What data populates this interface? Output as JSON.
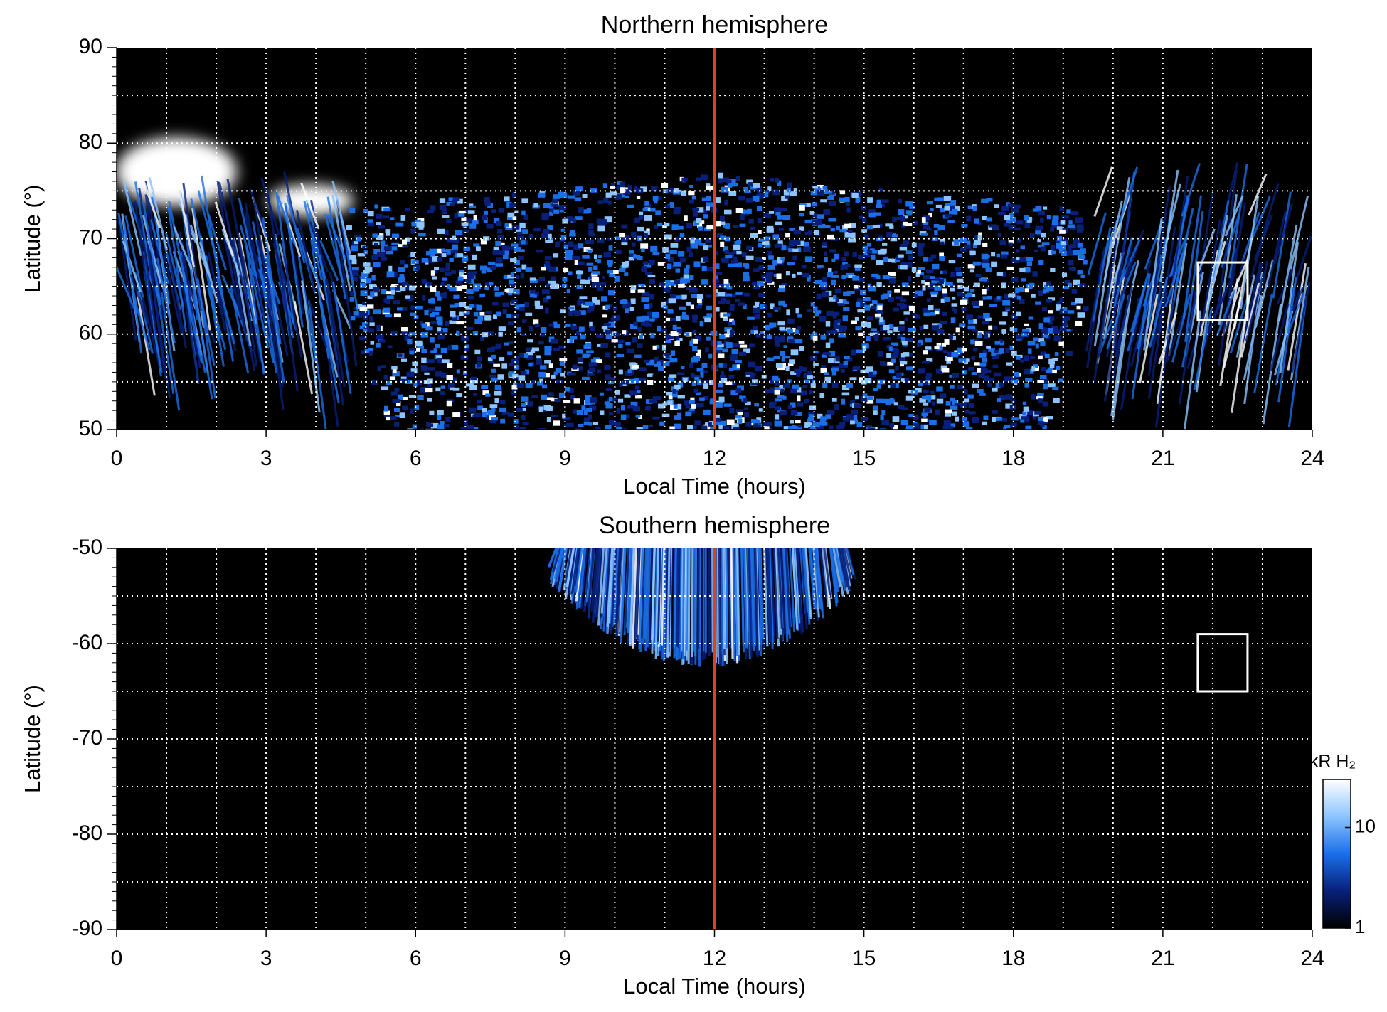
{
  "chart_data": [
    {
      "type": "heatmap",
      "title": "Northern hemisphere",
      "xlabel": "Local Time (hours)",
      "ylabel": "Latitude (°)",
      "xlim": [
        0,
        24
      ],
      "ylim": [
        50,
        90
      ],
      "xticks": [
        0,
        3,
        6,
        9,
        12,
        15,
        18,
        21,
        24
      ],
      "yticks": [
        50,
        60,
        70,
        80,
        90
      ],
      "xgrid": [
        1,
        2,
        3,
        4,
        5,
        6,
        7,
        8,
        9,
        10,
        11,
        13,
        14,
        15,
        16,
        17,
        18,
        19,
        20,
        21,
        22,
        23
      ],
      "ygrid": [
        55,
        60,
        65,
        70,
        75,
        80,
        85
      ],
      "vline": {
        "value": 12,
        "color": "#e0401a"
      },
      "box": {
        "x": [
          21.7,
          22.7
        ],
        "y": [
          61.5,
          67.5
        ],
        "color": "#ffffff"
      },
      "colormap": [
        "#000000",
        "#08207a",
        "#1a6fe8",
        "#8cc4ff",
        "#ffffff"
      ]
    },
    {
      "type": "heatmap",
      "title": "Southern hemisphere",
      "xlabel": "Local Time (hours)",
      "ylabel": "Latitude (°)",
      "xlim": [
        0,
        24
      ],
      "ylim": [
        -90,
        -50
      ],
      "xticks": [
        0,
        3,
        6,
        9,
        12,
        15,
        18,
        21,
        24
      ],
      "yticks": [
        -90,
        -80,
        -70,
        -60,
        -50
      ],
      "xgrid": [
        1,
        2,
        3,
        4,
        5,
        6,
        7,
        8,
        9,
        10,
        11,
        13,
        14,
        15,
        16,
        17,
        18,
        19,
        20,
        21,
        22,
        23
      ],
      "ygrid": [
        -85,
        -80,
        -75,
        -70,
        -65,
        -60,
        -55
      ],
      "vline": {
        "value": 12,
        "color": "#e0401a"
      },
      "box": {
        "x": [
          21.7,
          22.7
        ],
        "y": [
          -65,
          -59
        ],
        "color": "#ffffff"
      },
      "colormap": [
        "#000000",
        "#08207a",
        "#1a6fe8",
        "#8cc4ff",
        "#ffffff"
      ],
      "colorbar": {
        "label": "kR H₂",
        "lim": [
          1,
          30
        ],
        "ticks": [
          1,
          10
        ],
        "log": true
      }
    }
  ]
}
